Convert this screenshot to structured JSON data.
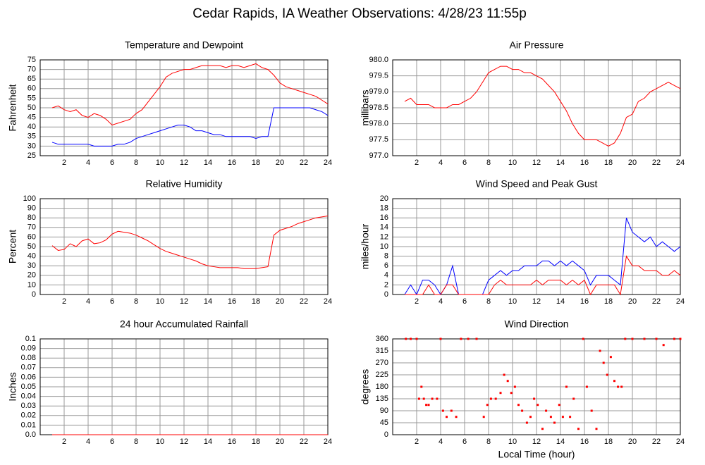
{
  "title": "Cedar Rapids, IA Weather Observations: 4/28/23 11:55p",
  "chart_data": [
    {
      "type": "line",
      "title": "Temperature and Dewpoint",
      "y_label": "Fahrenheit",
      "x": [
        1,
        1.5,
        2,
        2.5,
        3,
        3.5,
        4,
        4.5,
        5,
        5.5,
        6,
        6.5,
        7,
        7.5,
        8,
        8.5,
        9,
        9.5,
        10,
        10.5,
        11,
        11.5,
        12,
        12.5,
        13,
        13.5,
        14,
        14.5,
        15,
        15.5,
        16,
        16.5,
        17,
        17.5,
        18,
        18.5,
        19,
        19.5,
        20,
        20.5,
        21,
        21.5,
        22,
        22.5,
        23,
        23.5,
        24
      ],
      "series": [
        {
          "color": "#ff0000",
          "values": [
            50,
            51,
            49,
            48,
            49,
            46,
            45,
            47,
            46,
            44,
            41,
            42,
            43,
            44,
            47,
            49,
            53,
            57,
            61,
            66,
            68,
            69,
            70,
            70,
            71,
            72,
            72,
            72,
            72,
            71,
            72,
            72,
            71,
            72,
            73,
            71,
            70,
            67,
            63,
            61,
            60,
            59,
            58,
            57,
            56,
            54,
            52
          ]
        },
        {
          "color": "#0000ff",
          "values": [
            32,
            31,
            31,
            31,
            31,
            31,
            31,
            30,
            30,
            30,
            30,
            31,
            31,
            32,
            34,
            35,
            36,
            37,
            38,
            39,
            40,
            41,
            41,
            40,
            38,
            38,
            37,
            36,
            36,
            35,
            35,
            35,
            35,
            35,
            34,
            35,
            35,
            50,
            50,
            50,
            50,
            50,
            50,
            50,
            49,
            48,
            46
          ]
        }
      ],
      "xlim": [
        0,
        24
      ],
      "xticks": [
        2,
        4,
        6,
        8,
        10,
        12,
        14,
        16,
        18,
        20,
        22,
        24
      ],
      "ylim": [
        25,
        75
      ],
      "yticks": [
        25,
        30,
        35,
        40,
        45,
        50,
        55,
        60,
        65,
        70,
        75
      ],
      "grid": true
    },
    {
      "type": "line",
      "title": "Air Pressure",
      "y_label": "millibars",
      "color": "#ff0000",
      "x": [
        1,
        1.5,
        2,
        2.5,
        3,
        3.5,
        4,
        4.5,
        5,
        5.5,
        6,
        6.5,
        7,
        7.5,
        8,
        8.5,
        9,
        9.5,
        10,
        10.5,
        11,
        11.5,
        12,
        12.5,
        13,
        13.5,
        14,
        14.5,
        15,
        15.5,
        16,
        16.5,
        17,
        17.5,
        18,
        18.5,
        19,
        19.5,
        20,
        20.5,
        21,
        21.5,
        22,
        22.5,
        23,
        23.5,
        24
      ],
      "values": [
        978.7,
        978.8,
        978.6,
        978.6,
        978.6,
        978.5,
        978.5,
        978.5,
        978.6,
        978.6,
        978.7,
        978.8,
        979.0,
        979.3,
        979.6,
        979.7,
        979.8,
        979.8,
        979.7,
        979.7,
        979.6,
        979.6,
        979.5,
        979.4,
        979.2,
        979.0,
        978.7,
        978.4,
        978.0,
        977.7,
        977.5,
        977.5,
        977.5,
        977.4,
        977.3,
        977.4,
        977.7,
        978.2,
        978.3,
        978.7,
        978.8,
        979.0,
        979.1,
        979.2,
        979.3,
        979.2,
        979.1
      ],
      "xlim": [
        0,
        24
      ],
      "xticks": [
        2,
        4,
        6,
        8,
        10,
        12,
        14,
        16,
        18,
        20,
        22,
        24
      ],
      "ylim": [
        977,
        980
      ],
      "yticks": [
        {
          "value": 977,
          "label": "977.0"
        },
        977.5,
        {
          "value": 978,
          "label": "978.0"
        },
        978.5,
        {
          "value": 979,
          "label": "979.0"
        },
        979.5,
        {
          "value": 980,
          "label": "980.0"
        }
      ],
      "grid": true
    },
    {
      "type": "line",
      "title": "Relative Humidity",
      "y_label": "Percent",
      "color": "#ff0000",
      "x": [
        1,
        1.5,
        2,
        2.5,
        3,
        3.5,
        4,
        4.5,
        5,
        5.5,
        6,
        6.5,
        7,
        7.5,
        8,
        8.5,
        9,
        9.5,
        10,
        10.5,
        11,
        11.5,
        12,
        12.5,
        13,
        13.5,
        14,
        14.5,
        15,
        15.5,
        16,
        16.5,
        17,
        17.5,
        18,
        18.5,
        19,
        19.5,
        20,
        20.5,
        21,
        21.5,
        22,
        22.5,
        23,
        23.5,
        24
      ],
      "values": [
        51,
        46,
        47,
        53,
        50,
        56,
        58,
        53,
        54,
        57,
        63,
        66,
        65,
        64,
        62,
        59,
        56,
        52,
        48,
        45,
        43,
        41,
        39,
        37,
        35,
        32,
        30,
        29,
        28,
        28,
        28,
        28,
        27,
        27,
        27,
        28,
        29,
        62,
        67,
        69,
        71,
        74,
        76,
        78,
        80,
        81,
        82
      ],
      "xlim": [
        0,
        24
      ],
      "xticks": [
        2,
        4,
        6,
        8,
        10,
        12,
        14,
        16,
        18,
        20,
        22,
        24
      ],
      "ylim": [
        0,
        100
      ],
      "yticks": [
        0,
        10,
        20,
        30,
        40,
        50,
        60,
        70,
        80,
        90,
        100
      ],
      "grid": true
    },
    {
      "type": "line",
      "title": "Wind Speed and Peak Gust",
      "y_label": "miles/hour",
      "x": [
        1,
        1.5,
        2,
        2.5,
        3,
        3.5,
        4,
        4.5,
        5,
        5.5,
        6,
        6.5,
        7,
        7.5,
        8,
        8.5,
        9,
        9.5,
        10,
        10.5,
        11,
        11.5,
        12,
        12.5,
        13,
        13.5,
        14,
        14.5,
        15,
        15.5,
        16,
        16.5,
        17,
        17.5,
        18,
        18.5,
        19,
        19.5,
        20,
        20.5,
        21,
        21.5,
        22,
        22.5,
        23,
        23.5,
        24
      ],
      "series": [
        {
          "color": "#0000ff",
          "values": [
            0,
            2,
            0,
            3,
            3,
            2,
            0,
            2,
            6,
            0,
            0,
            0,
            0,
            0,
            3,
            4,
            5,
            4,
            5,
            5,
            6,
            6,
            6,
            7,
            7,
            6,
            7,
            6,
            7,
            6,
            5,
            2,
            4,
            4,
            4,
            3,
            2,
            16,
            13,
            12,
            11,
            12,
            10,
            11,
            10,
            9,
            10
          ]
        },
        {
          "color": "#ff0000",
          "values": [
            0,
            0,
            0,
            0,
            2,
            0,
            0,
            2,
            2,
            0,
            0,
            0,
            0,
            0,
            0,
            2,
            3,
            2,
            2,
            2,
            2,
            2,
            3,
            2,
            3,
            3,
            3,
            2,
            3,
            2,
            3,
            0,
            2,
            2,
            2,
            2,
            0,
            8,
            6,
            6,
            5,
            5,
            5,
            4,
            4,
            5,
            4
          ]
        }
      ],
      "xlim": [
        0,
        24
      ],
      "xticks": [
        2,
        4,
        6,
        8,
        10,
        12,
        14,
        16,
        18,
        20,
        22,
        24
      ],
      "ylim": [
        0,
        20
      ],
      "yticks": [
        0,
        2,
        4,
        6,
        8,
        10,
        12,
        14,
        16,
        18,
        20
      ],
      "grid": true
    },
    {
      "type": "line",
      "title": "24 hour Accumulated Rainfall",
      "y_label": "Inches",
      "color": "#ff0000",
      "x": [
        1,
        24
      ],
      "values": [
        0,
        0
      ],
      "xlim": [
        0,
        24
      ],
      "xticks": [
        2,
        4,
        6,
        8,
        10,
        12,
        14,
        16,
        18,
        20,
        22,
        24
      ],
      "ylim": [
        0,
        0.1
      ],
      "yticks": [
        {
          "value": 0,
          "label": "0.0"
        },
        0.01,
        0.02,
        0.03,
        0.04,
        0.05,
        0.06,
        0.07,
        0.08,
        0.09,
        0.1
      ],
      "grid": true
    },
    {
      "type": "scatter",
      "title": "Wind Direction",
      "y_label": "degrees",
      "x_label": "Local Time (hour)",
      "color": "#ff0000",
      "x": [
        1.1,
        1.5,
        2,
        2.2,
        2.4,
        2.6,
        2.8,
        3,
        3.3,
        3.7,
        4,
        4.2,
        4.5,
        4.9,
        5.3,
        5.7,
        6.3,
        7,
        7.6,
        7.9,
        8.2,
        8.6,
        9,
        9.3,
        9.6,
        9.9,
        10.2,
        10.5,
        10.8,
        11.2,
        11.5,
        11.8,
        12.1,
        12.5,
        12.8,
        13.2,
        13.5,
        13.9,
        14.2,
        14.5,
        14.8,
        15.1,
        15.5,
        15.9,
        16.2,
        16.6,
        17,
        17.3,
        17.6,
        17.9,
        18.2,
        18.5,
        18.8,
        19.1,
        19.4,
        20,
        21,
        22,
        22.6,
        23.5,
        24
      ],
      "values": [
        360,
        360,
        360,
        135,
        180,
        135,
        112,
        112,
        135,
        135,
        360,
        90,
        67,
        90,
        67,
        360,
        360,
        360,
        67,
        112,
        135,
        135,
        157,
        225,
        202,
        157,
        180,
        112,
        90,
        45,
        67,
        135,
        112,
        22,
        90,
        67,
        45,
        112,
        67,
        180,
        67,
        135,
        22,
        360,
        180,
        90,
        22,
        315,
        270,
        225,
        292,
        202,
        180,
        180,
        360,
        360,
        360,
        360,
        337,
        360,
        360
      ],
      "xlim": [
        0,
        24
      ],
      "xticks": [
        2,
        4,
        6,
        8,
        10,
        12,
        14,
        16,
        18,
        20,
        22,
        24
      ],
      "ylim": [
        0,
        360
      ],
      "yticks": [
        0,
        45,
        90,
        135,
        180,
        225,
        270,
        315,
        360
      ],
      "grid": true
    }
  ]
}
